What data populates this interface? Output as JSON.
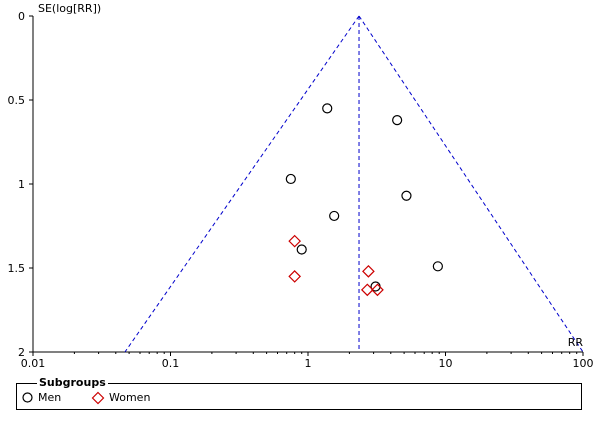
{
  "chart_data": {
    "type": "scatter",
    "title": "",
    "xlabel": "RR",
    "ylabel": "SE(log[RR])",
    "x_scale": "log",
    "xlim": [
      0.01,
      100
    ],
    "ylim": [
      2,
      0
    ],
    "y_reversed": true,
    "x_ticks": [
      0.01,
      0.1,
      1,
      10,
      100
    ],
    "x_tick_labels": [
      "0.01",
      "0.1",
      "1",
      "10",
      "100"
    ],
    "y_ticks": [
      0,
      0.5,
      1,
      1.5,
      2
    ],
    "y_tick_labels": [
      "0",
      "0.5",
      "1",
      "1.5",
      "2"
    ],
    "grid": false,
    "funnel": {
      "pooled_rr": 2.35,
      "line_color": "#0000cc",
      "style": "dashed"
    },
    "legend": {
      "title": "Subgroups",
      "placement": "bottom"
    },
    "series": [
      {
        "name": "Men",
        "marker": "circle",
        "color": "#000000",
        "points": [
          {
            "x": 1.38,
            "y": 0.55
          },
          {
            "x": 4.45,
            "y": 0.62
          },
          {
            "x": 0.75,
            "y": 0.97
          },
          {
            "x": 5.2,
            "y": 1.07
          },
          {
            "x": 1.55,
            "y": 1.19
          },
          {
            "x": 0.9,
            "y": 1.39
          },
          {
            "x": 8.8,
            "y": 1.49
          },
          {
            "x": 3.1,
            "y": 1.61
          }
        ]
      },
      {
        "name": "Women",
        "marker": "diamond",
        "color": "#cc0000",
        "points": [
          {
            "x": 0.8,
            "y": 1.34
          },
          {
            "x": 0.8,
            "y": 1.55
          },
          {
            "x": 2.75,
            "y": 1.52
          },
          {
            "x": 2.7,
            "y": 1.63
          },
          {
            "x": 3.2,
            "y": 1.63
          }
        ]
      }
    ]
  }
}
